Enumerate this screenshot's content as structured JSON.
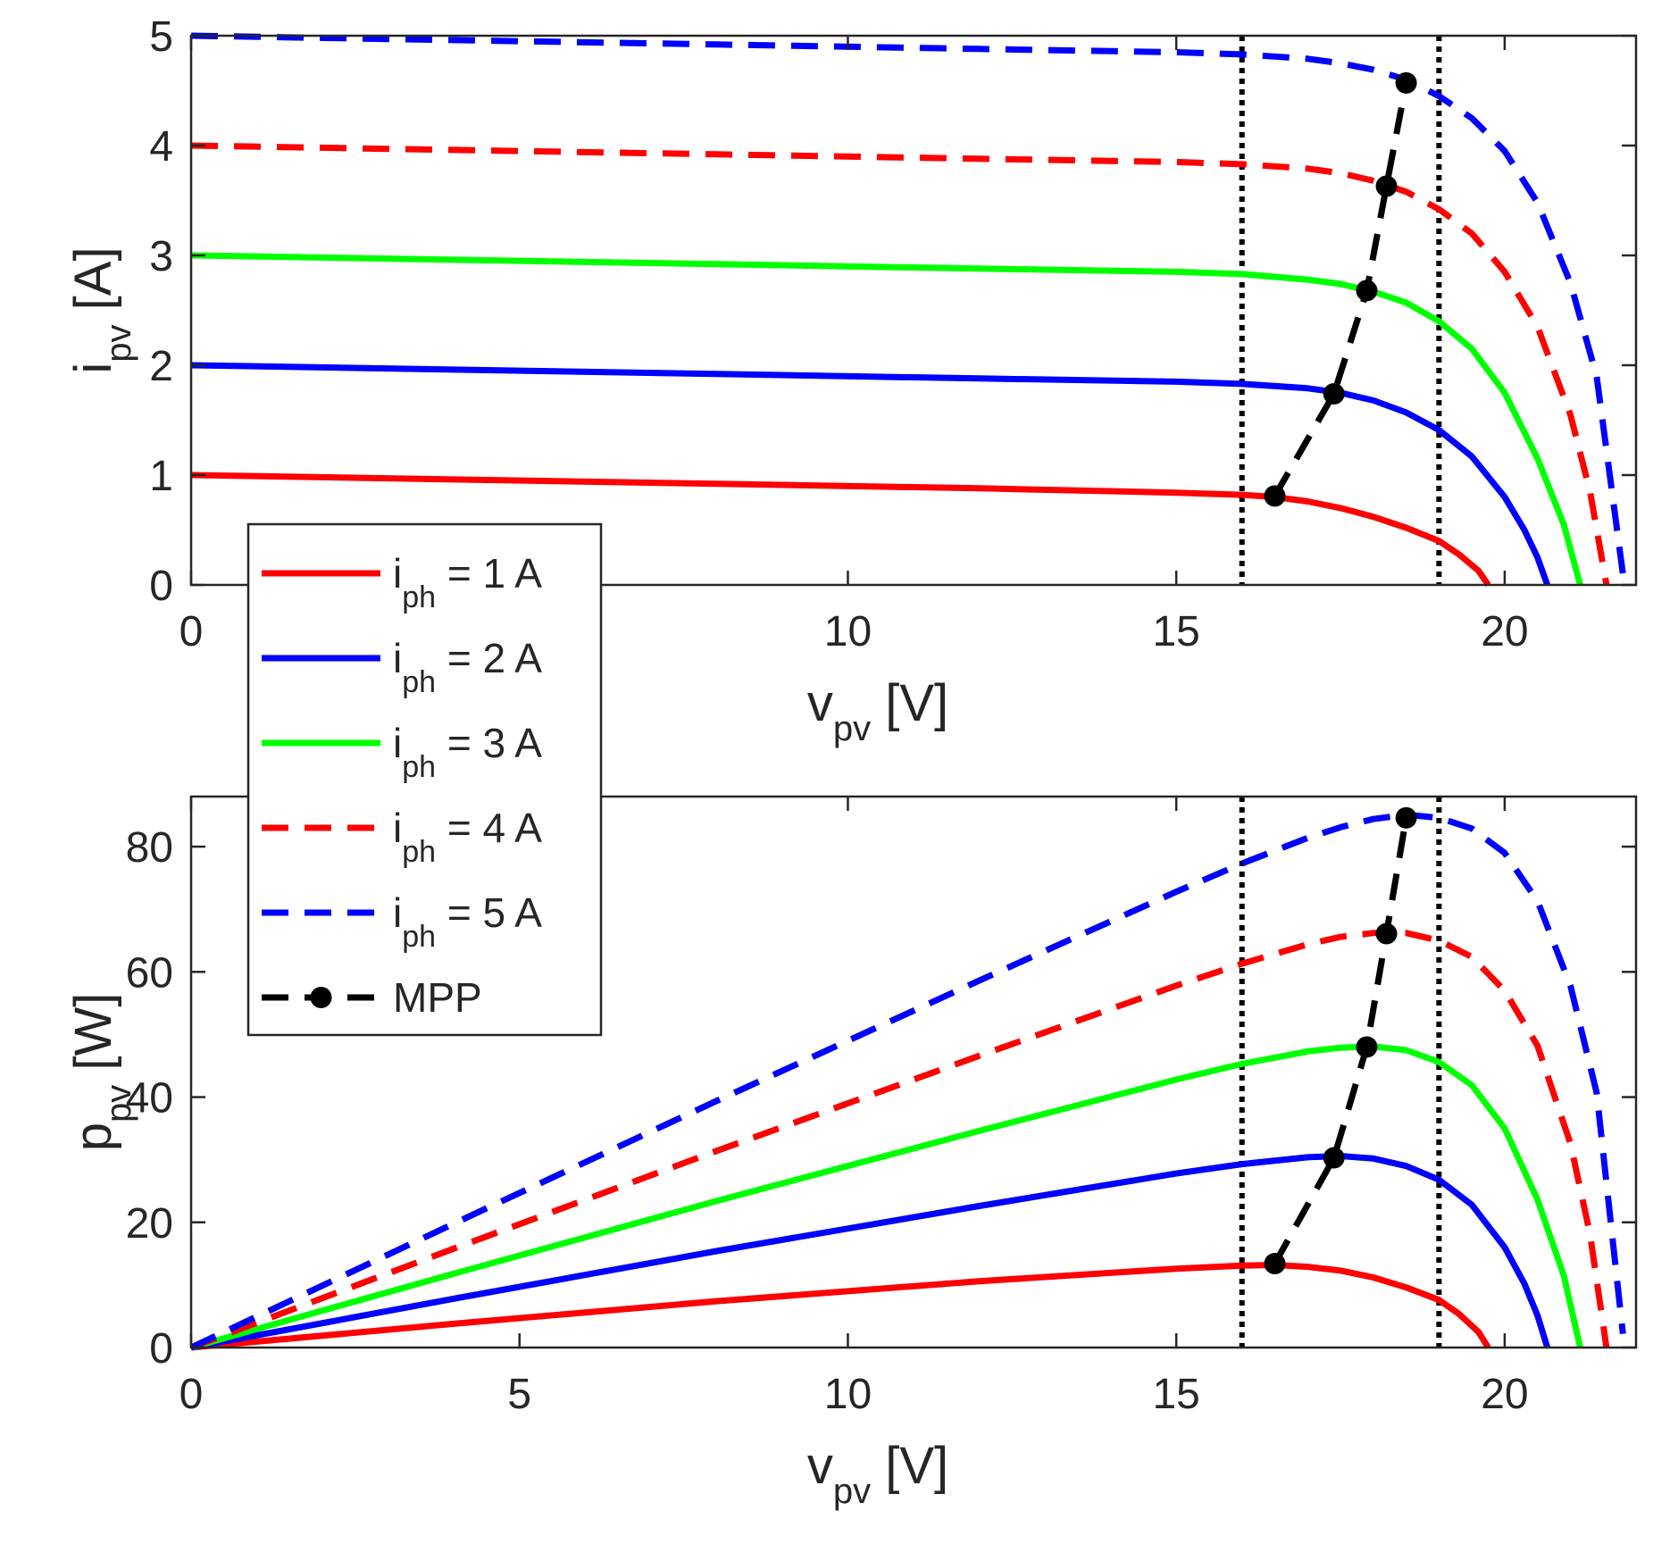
{
  "chart_data": [
    {
      "id": "iv",
      "type": "line",
      "xlabel_main": "v",
      "xlabel_sub": "pv",
      "xlabel_unit": "[V]",
      "ylabel_main": "i",
      "ylabel_sub": "pv",
      "ylabel_unit": "[A]",
      "xlim": [
        0,
        22
      ],
      "ylim": [
        0,
        5
      ],
      "xticks": [
        0,
        10,
        15,
        20
      ],
      "yticks": [
        0,
        1,
        2,
        3,
        4,
        5
      ],
      "vlines": [
        16,
        19
      ],
      "series": [
        {
          "name": "i_ph = 1 A",
          "color": "#ff0000",
          "dash": false,
          "x": [
            0,
            4,
            8,
            12,
            15,
            16,
            16.5,
            17,
            17.5,
            18,
            18.5,
            19,
            19.3,
            19.6,
            19.75
          ],
          "y": [
            1.0,
            0.96,
            0.92,
            0.88,
            0.84,
            0.82,
            0.8,
            0.76,
            0.7,
            0.62,
            0.52,
            0.4,
            0.28,
            0.13,
            0.0
          ]
        },
        {
          "name": "i_ph = 2 A",
          "color": "#0000ff",
          "dash": false,
          "x": [
            0,
            4,
            8,
            12,
            15,
            16,
            17,
            17.5,
            18,
            18.5,
            19,
            19.5,
            20,
            20.3,
            20.5,
            20.65
          ],
          "y": [
            2.0,
            1.96,
            1.92,
            1.88,
            1.85,
            1.83,
            1.79,
            1.75,
            1.68,
            1.57,
            1.41,
            1.17,
            0.8,
            0.5,
            0.25,
            0.0
          ]
        },
        {
          "name": "i_ph = 3 A",
          "color": "#00ff00",
          "dash": false,
          "x": [
            0,
            4,
            8,
            12,
            15,
            16,
            17,
            17.5,
            18,
            18.5,
            19,
            19.5,
            20,
            20.5,
            20.9,
            21.15
          ],
          "y": [
            3.0,
            2.96,
            2.92,
            2.88,
            2.85,
            2.83,
            2.78,
            2.74,
            2.67,
            2.57,
            2.4,
            2.15,
            1.75,
            1.15,
            0.55,
            0.0
          ]
        },
        {
          "name": "i_ph = 4 A",
          "color": "#ff0000",
          "dash": true,
          "x": [
            0,
            4,
            8,
            12,
            15,
            16,
            17,
            17.5,
            18,
            18.5,
            19,
            19.5,
            20,
            20.5,
            21,
            21.3,
            21.55
          ],
          "y": [
            4.0,
            3.96,
            3.92,
            3.88,
            3.85,
            3.83,
            3.79,
            3.75,
            3.68,
            3.58,
            3.42,
            3.2,
            2.85,
            2.35,
            1.55,
            0.85,
            0.0
          ]
        },
        {
          "name": "i_ph = 5 A",
          "color": "#0000ff",
          "dash": true,
          "x": [
            0,
            4,
            8,
            12,
            15,
            16,
            17,
            17.5,
            18,
            18.5,
            19,
            19.5,
            20,
            20.5,
            21,
            21.4,
            21.8
          ],
          "y": [
            5.0,
            4.96,
            4.92,
            4.88,
            4.85,
            4.83,
            4.79,
            4.75,
            4.69,
            4.6,
            4.45,
            4.25,
            3.95,
            3.48,
            2.75,
            1.9,
            0.1
          ]
        },
        {
          "name": "MPP",
          "color": "#000000",
          "dash": true,
          "markers": true,
          "x": [
            16.5,
            17.4,
            17.9,
            18.2,
            18.5
          ],
          "y": [
            0.81,
            1.74,
            2.68,
            3.63,
            4.57
          ]
        }
      ]
    },
    {
      "id": "pv",
      "type": "line",
      "xlabel_main": "v",
      "xlabel_sub": "pv",
      "xlabel_unit": "[V]",
      "ylabel_main": "p",
      "ylabel_sub": "pv",
      "ylabel_unit": "[W]",
      "xlim": [
        0,
        22
      ],
      "ylim": [
        0,
        88
      ],
      "xticks": [
        0,
        5,
        10,
        15,
        20
      ],
      "yticks": [
        0,
        20,
        40,
        60,
        80
      ],
      "vlines": [
        16,
        19
      ],
      "series": [
        {
          "name": "i_ph = 1 A",
          "color": "#ff0000",
          "dash": false,
          "x": [
            0,
            4,
            8,
            12,
            15,
            16,
            16.5,
            17,
            17.5,
            18,
            18.5,
            19,
            19.3,
            19.6,
            19.75
          ],
          "y": [
            0,
            3.8,
            7.4,
            10.6,
            12.6,
            13.1,
            13.2,
            12.9,
            12.3,
            11.2,
            9.6,
            7.6,
            5.4,
            2.5,
            0
          ]
        },
        {
          "name": "i_ph = 2 A",
          "color": "#0000ff",
          "dash": false,
          "x": [
            0,
            4,
            8,
            12,
            15,
            16,
            17,
            17.5,
            18,
            18.5,
            19,
            19.5,
            20,
            20.3,
            20.5,
            20.65
          ],
          "y": [
            0,
            7.8,
            15.4,
            22.6,
            27.8,
            29.3,
            30.4,
            30.6,
            30.2,
            29.0,
            26.8,
            22.8,
            16.0,
            10.2,
            5.1,
            0
          ]
        },
        {
          "name": "i_ph = 3 A",
          "color": "#00ff00",
          "dash": false,
          "x": [
            0,
            4,
            8,
            12,
            15,
            16,
            17,
            17.5,
            18,
            18.5,
            19,
            19.5,
            20,
            20.5,
            20.9,
            21.15
          ],
          "y": [
            0,
            11.8,
            23.4,
            34.6,
            42.8,
            45.3,
            47.3,
            47.9,
            48.1,
            47.5,
            45.6,
            41.9,
            35.0,
            23.6,
            11.5,
            0
          ]
        },
        {
          "name": "i_ph = 4 A",
          "color": "#ff0000",
          "dash": true,
          "x": [
            0,
            4,
            8,
            12,
            15,
            16,
            17,
            17.5,
            18,
            18.5,
            19,
            19.5,
            20,
            20.5,
            21,
            21.3,
            21.55
          ],
          "y": [
            0,
            15.8,
            31.4,
            46.6,
            57.8,
            61.3,
            64.4,
            65.6,
            66.2,
            66.2,
            65.0,
            62.4,
            57.0,
            48.2,
            32.6,
            18.1,
            0
          ]
        },
        {
          "name": "i_ph = 5 A",
          "color": "#0000ff",
          "dash": true,
          "x": [
            0,
            4,
            8,
            12,
            15,
            16,
            17,
            17.5,
            18,
            18.5,
            19,
            19.5,
            20,
            20.5,
            21,
            21.4,
            21.8
          ],
          "y": [
            0,
            19.8,
            39.4,
            58.6,
            72.8,
            77.3,
            81.4,
            83.1,
            84.4,
            85.1,
            84.6,
            82.9,
            79.0,
            71.3,
            57.8,
            40.7,
            2.2
          ]
        },
        {
          "name": "MPP",
          "color": "#000000",
          "dash": true,
          "markers": true,
          "x": [
            16.5,
            17.4,
            17.9,
            18.2,
            18.5
          ],
          "y": [
            13.4,
            30.3,
            48.0,
            66.1,
            84.6
          ]
        }
      ]
    }
  ],
  "legend": {
    "placement": "bottom-left of top plot, overlapping lower plot",
    "entries": [
      {
        "main": "i",
        "sub": "ph",
        "text": " = 1 A",
        "color": "#ff0000",
        "dash": false,
        "marker": false
      },
      {
        "main": "i",
        "sub": "ph",
        "text": " = 2 A",
        "color": "#0000ff",
        "dash": false,
        "marker": false
      },
      {
        "main": "i",
        "sub": "ph",
        "text": " = 3 A",
        "color": "#00ff00",
        "dash": false,
        "marker": false
      },
      {
        "main": "i",
        "sub": "ph",
        "text": " = 4 A",
        "color": "#ff0000",
        "dash": true,
        "marker": false
      },
      {
        "main": "i",
        "sub": "ph",
        "text": " = 5 A",
        "color": "#0000ff",
        "dash": true,
        "marker": false
      },
      {
        "main": "MPP",
        "sub": "",
        "text": "",
        "color": "#000000",
        "dash": true,
        "marker": true
      }
    ]
  }
}
